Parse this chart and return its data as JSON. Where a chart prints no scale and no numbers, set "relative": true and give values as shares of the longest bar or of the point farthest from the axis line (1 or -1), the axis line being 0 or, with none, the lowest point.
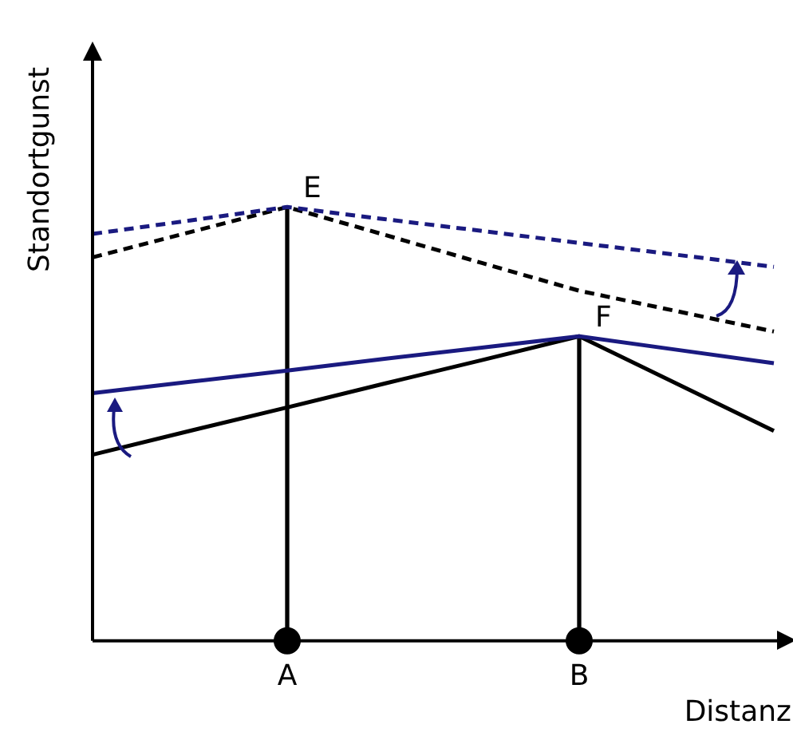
{
  "chart_data": {
    "type": "line",
    "relative": true,
    "xlabel": "Distanz",
    "ylabel": "Standortgunst",
    "categories": [
      null,
      null,
      "A",
      null,
      null,
      "B",
      null,
      null
    ],
    "grid": false,
    "legend": false,
    "series": [
      {
        "color": "#1a1a80",
        "line_style": "dashed",
        "marker": "none",
        "values": [
          0.938,
          0.969,
          1,
          0.972,
          0.945,
          0.917,
          0.89,
          0.862
        ]
      },
      {
        "color": "#000000",
        "line_style": "dashed",
        "marker": "none",
        "values": [
          0.884,
          0.942,
          1,
          0.936,
          0.871,
          0.807,
          0.76,
          0.713
        ]
      },
      {
        "color": "#1a1a80",
        "line_style": "solid",
        "marker": "none",
        "values": [
          0.571,
          0.597,
          0.623,
          0.65,
          0.676,
          0.702,
          0.671,
          0.64
        ]
      },
      {
        "color": "#000000",
        "line_style": "solid",
        "marker": "none",
        "values": [
          0.429,
          0.484,
          0.538,
          0.593,
          0.647,
          0.702,
          0.593,
          0.484
        ]
      },
      {
        "type": "bar",
        "color": "#000000",
        "values": [
          null,
          null,
          1,
          null,
          null,
          0.702,
          null,
          null
        ]
      },
      {
        "type": "scatter",
        "color": "#000000",
        "marker": "circle",
        "values": [
          null,
          null,
          0,
          null,
          null,
          0,
          null,
          null
        ]
      }
    ],
    "annotations": [
      {
        "text": "E",
        "x": "A",
        "y": 1
      },
      {
        "text": "F",
        "x": "B",
        "y": 0.702
      }
    ]
  }
}
